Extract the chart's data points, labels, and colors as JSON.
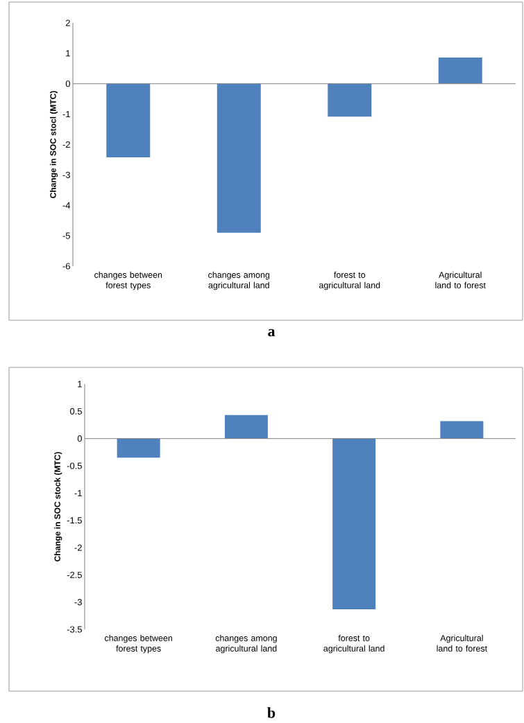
{
  "chart_data": [
    {
      "type": "bar",
      "ylabel": "Change in SOC stocl (MTC)",
      "categories": [
        "changes between forest types",
        "changes among agricultural land",
        "forest to agricultural land",
        "Agricultural land to forest"
      ],
      "values": [
        -2.42,
        -4.9,
        -1.08,
        0.86
      ],
      "color": "#4f81bd",
      "ylim": [
        -6,
        2
      ],
      "yticks": [
        -6,
        -5,
        -4,
        -3,
        -2,
        -1,
        0,
        1,
        2
      ],
      "annotations": [
        "a"
      ]
    },
    {
      "type": "bar",
      "ylabel": "Change in SOC stock (MTC)",
      "categories": [
        "changes between forest types",
        "changes among agricultural land",
        "forest to agricultural land",
        "Agricultural land to forest"
      ],
      "values": [
        -0.35,
        0.43,
        -3.13,
        0.32
      ],
      "color": "#4f81bd",
      "ylim": [
        -3.5,
        1
      ],
      "yticks": [
        -3.5,
        -3,
        -2.5,
        -2,
        -1.5,
        -1,
        -0.5,
        0,
        0.5,
        1
      ],
      "annotations": [
        "b"
      ]
    }
  ]
}
